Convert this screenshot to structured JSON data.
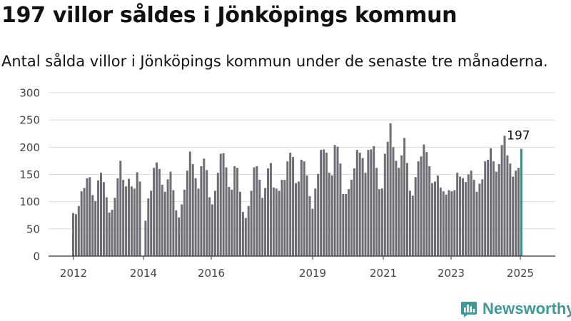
{
  "title": "197 villor såldes i Jönköpings kommun",
  "subtitle": "Antal sålda villor i Jönköpings kommun under de senaste tre månaderna.",
  "brand": {
    "name": "Newsworthy",
    "icon": "newsworthy-logo-icon",
    "color": "#3f9a97"
  },
  "chart_data": {
    "type": "bar",
    "title": "",
    "xlabel": "",
    "ylabel": "",
    "ylim": [
      0,
      300
    ],
    "yticks": [
      0,
      50,
      100,
      150,
      200,
      250,
      300
    ],
    "xtick_labels": [
      "2012",
      "2014",
      "2016",
      "2019",
      "2021",
      "2023",
      "2025"
    ],
    "grid": true,
    "bar_color": "#6e6e74",
    "highlight_color": "#1a9a96",
    "highlight_label": "197",
    "segments": [
      {
        "values": [
          79,
          77,
          92,
          119,
          125,
          143,
          145,
          112,
          101,
          139,
          153,
          136,
          108,
          80,
          85,
          107,
          143,
          175,
          140,
          128,
          142,
          128,
          124,
          154,
          137
        ]
      },
      {
        "values": [
          65,
          106,
          120,
          162,
          172,
          160,
          131,
          118,
          141,
          155,
          121,
          84,
          71,
          95,
          122,
          157,
          192,
          169,
          143,
          124,
          165,
          179,
          158,
          108,
          95,
          120,
          153,
          188,
          189,
          163,
          127,
          122,
          165,
          162,
          118,
          81,
          70,
          92,
          120,
          163,
          165,
          140,
          107,
          125,
          161,
          171,
          126,
          124,
          120,
          140,
          140,
          174,
          190,
          182,
          134,
          137,
          177,
          174,
          148,
          110,
          87,
          124,
          151,
          195,
          196,
          190,
          153,
          148,
          204,
          201,
          170,
          114,
          114,
          123,
          140,
          161,
          195,
          190,
          180,
          153,
          195,
          196,
          202,
          162,
          123,
          124,
          188,
          210,
          244,
          200,
          175,
          162,
          185,
          217,
          171,
          120,
          111,
          145,
          174,
          183,
          205,
          191,
          165,
          134,
          137,
          148,
          126,
          119,
          113,
          121,
          119,
          121,
          153,
          146,
          143,
          136,
          150,
          157,
          140,
          118,
          133,
          141,
          174,
          177,
          198,
          174,
          155,
          169,
          204,
          221,
          185,
          170,
          146,
          157,
          162,
          197
        ]
      }
    ]
  }
}
